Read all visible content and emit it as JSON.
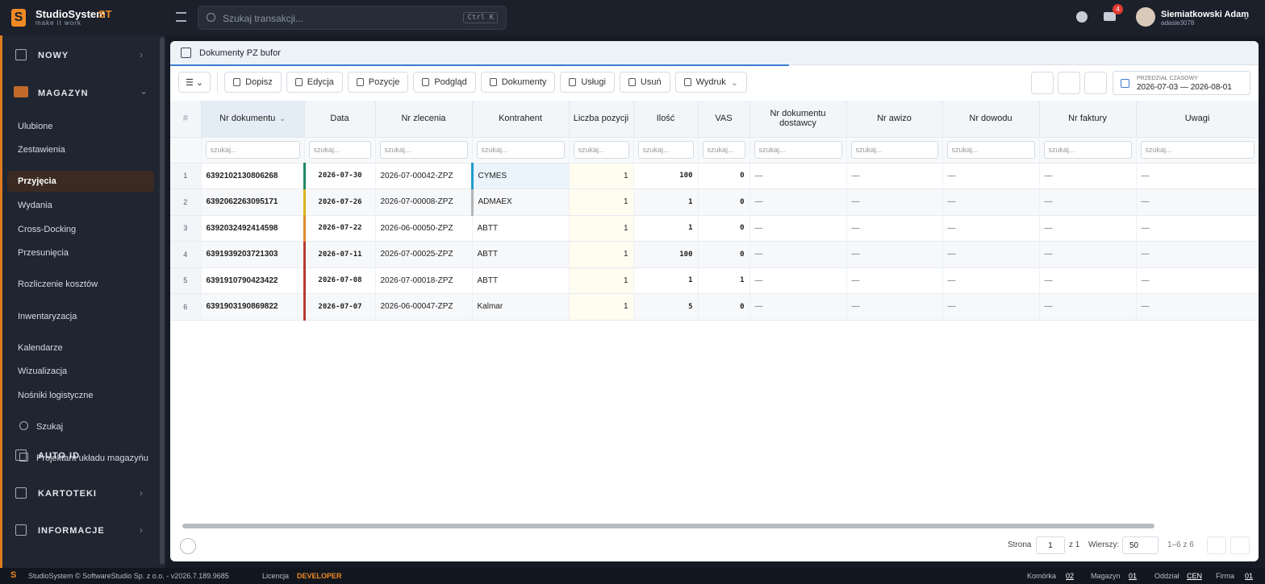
{
  "header": {
    "brand": "StudioSystem",
    "brand_suffix": "ST",
    "tagline": "make it work",
    "search_placeholder": "Szukaj transakcji...",
    "shortcut": "Ctrl K",
    "notification_count": "4",
    "user_name": "Siemiatkowski Adam",
    "user_login": "adasie3078"
  },
  "sidebar": {
    "top_section": "NOWY",
    "open_section": "MAGAZYN",
    "links": [
      "Ulubione",
      "Zestawienia",
      "Przyjęcia",
      "Wydania",
      "Cross-Docking",
      "Przesunięcia",
      "Rozliczenie kosztów",
      "Inwentaryzacja",
      "Kalendarze",
      "Wizualizacja",
      "Nośniki logistyczne",
      "Szukaj",
      "Projektant układu magazynu"
    ],
    "sections": [
      "AUTO ID",
      "KARTOTEKI",
      "INFORMACJE"
    ]
  },
  "tab": {
    "title": "Dokumenty PZ bufor"
  },
  "toolbar": {
    "buttons": [
      "Dopisz",
      "Edycja",
      "Pozycje",
      "Podgląd",
      "Dokumenty",
      "Usługi",
      "Usuń",
      "Wydruk"
    ]
  },
  "date_range": {
    "label": "PRZEDZIAŁ CZASOWY",
    "value": "2026-07-03 — 2026-08-01"
  },
  "table": {
    "columns": [
      "#",
      "Nr dokumentu",
      "Data",
      "Nr zlecenia",
      "Kontrahent",
      "Liczba pozycji",
      "Ilość",
      "VAS",
      "Nr dokumentu dostawcy",
      "Nr awizo",
      "Nr dowodu",
      "Nr faktury",
      "Uwagi"
    ],
    "filter_placeholder": "szukaj...",
    "rows": [
      [
        1,
        "6392102130806268",
        "2026-07-30",
        "2026-07-00042-ZPZ",
        "CYMES",
        1,
        100,
        0,
        "—",
        "—",
        "—",
        "—",
        "—"
      ],
      [
        2,
        "6392062263095171",
        "2026-07-26",
        "2026-07-00008-ZPZ",
        "ADMAEX",
        1,
        1,
        0,
        "—",
        "—",
        "—",
        "—",
        "—"
      ],
      [
        3,
        "6392032492414598",
        "2026-07-22",
        "2026-06-00050-ZPZ",
        "ABTT",
        1,
        1,
        0,
        "—",
        "—",
        "—",
        "—",
        "—"
      ],
      [
        4,
        "6391939203721303",
        "2026-07-11",
        "2026-07-00025-ZPZ",
        "ABTT",
        1,
        100,
        0,
        "—",
        "—",
        "—",
        "—",
        "—"
      ],
      [
        5,
        "6391910790423422",
        "2026-07-08",
        "2026-07-00018-ZPZ",
        "ABTT",
        1,
        1,
        1,
        "—",
        "—",
        "—",
        "—",
        "—"
      ],
      [
        6,
        "6391903190869822",
        "2026-07-07",
        "2026-06-00047-ZPZ",
        "Kalmar",
        1,
        5,
        0,
        "—",
        "—",
        "—",
        "—",
        "—"
      ]
    ],
    "status_colors": [
      "#1e8c64",
      "#d9b21e",
      "#e0892b",
      "#b83a32",
      "#b83a32",
      "#b83a32"
    ],
    "contractor_colors": [
      "#1f9bd0",
      "#b4b4b4",
      null,
      null,
      null,
      null
    ]
  },
  "pagination": {
    "page_label": "Strona",
    "page": "1",
    "page_of": "z 1",
    "rows_label": "Wierszy:",
    "rows_per_page": "50",
    "range": "1–6 z 6"
  },
  "status_bar": {
    "copyright": "StudioSystem © SoftwareStudio Sp. z o.o. - v2026.7.189.9685",
    "license_label": "Licencja",
    "license": "DEVELOPER",
    "cell_label": "Komórka",
    "cell": "02",
    "warehouse_label": "Magazyn",
    "warehouse": "01",
    "branch_label": "Oddział",
    "branch": "CEN",
    "company_label": "Firma",
    "company": "01"
  }
}
